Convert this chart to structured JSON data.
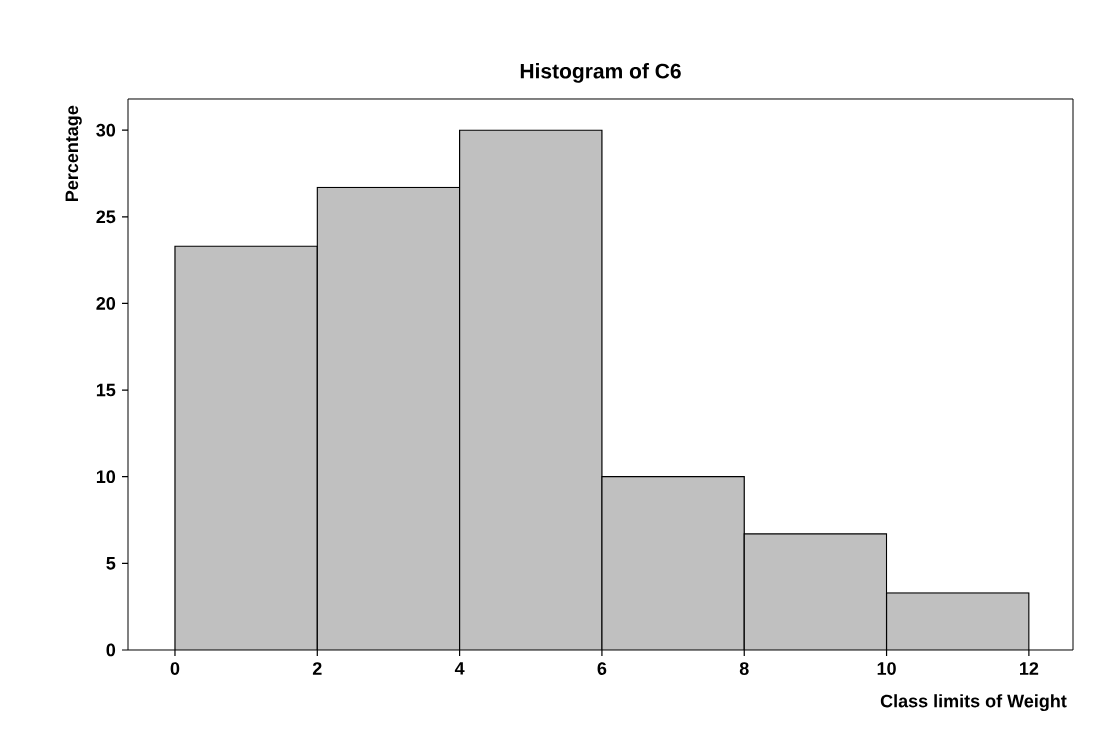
{
  "chart_data": {
    "type": "histogram",
    "title": "Histogram of C6",
    "xlabel": "Class limits of Weight",
    "ylabel": "Percentage",
    "bins": [
      0,
      2,
      4,
      6,
      8,
      10,
      12
    ],
    "values": [
      23.3,
      26.7,
      30,
      10,
      6.7,
      3.3
    ],
    "color": "#c0c0c0",
    "xlim": [
      -0.66,
      12.62
    ],
    "ylim": [
      0,
      31.8
    ],
    "xticks": [
      0,
      2,
      4,
      6,
      8,
      10,
      12
    ],
    "yticks": [
      0,
      5,
      10,
      15,
      20,
      25,
      30
    ],
    "grid": false
  }
}
